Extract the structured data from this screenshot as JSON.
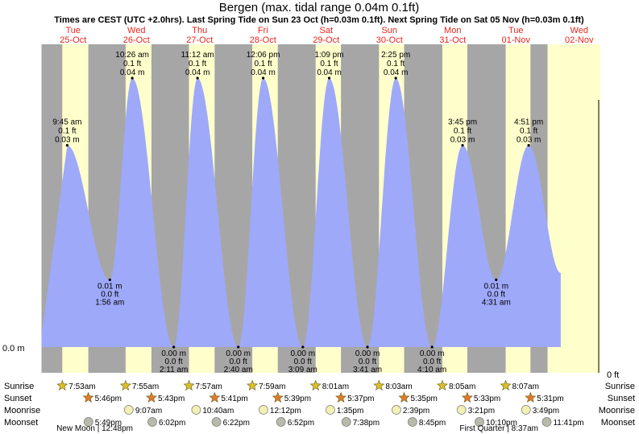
{
  "chart_data": {
    "type": "area",
    "title": "Bergen (max. tidal range 0.04m 0.1ft)",
    "subtitle": "Times are CEST (UTC +2.0hrs). Last Spring Tide on Sun 23 Oct (h=0.03m 0.1ft). Next Spring Tide on Sat 05 Nov (h=0.03m 0.1ft)",
    "x_range": [
      "2022-10-25 00:00",
      "2022-11-02 00:00"
    ],
    "ylim_m": [
      0,
      0.045
    ],
    "y_axis_labels": {
      "left": "0.0 m",
      "right": "0 ft"
    },
    "colors": {
      "water": "#9ea9fa",
      "day": "#ffffcc",
      "night": "#a6a6a6",
      "date": "#e8261c",
      "sunrise_star": "#d9c02a",
      "sunset_star": "#e07a2c",
      "moonrise": "#f2f0b2",
      "moonset": "#b9b9ac"
    },
    "days": [
      {
        "weekday": "Tue",
        "date": "25-Oct",
        "sunrise": "7:53am",
        "sunset": "5:46pm",
        "moonrise": "",
        "moonset": "5:49pm"
      },
      {
        "weekday": "Wed",
        "date": "26-Oct",
        "sunrise": "7:55am",
        "sunset": "5:43pm",
        "moonrise": "9:07am",
        "moonset": "6:02pm"
      },
      {
        "weekday": "Thu",
        "date": "27-Oct",
        "sunrise": "7:57am",
        "sunset": "5:41pm",
        "moonrise": "10:40am",
        "moonset": "6:22pm"
      },
      {
        "weekday": "Fri",
        "date": "28-Oct",
        "sunrise": "7:59am",
        "sunset": "5:39pm",
        "moonrise": "12:12pm",
        "moonset": "6:52pm"
      },
      {
        "weekday": "Sat",
        "date": "29-Oct",
        "sunrise": "8:01am",
        "sunset": "5:37pm",
        "moonrise": "1:35pm",
        "moonset": "7:38pm"
      },
      {
        "weekday": "Sun",
        "date": "30-Oct",
        "sunrise": "8:03am",
        "sunset": "5:35pm",
        "moonrise": "2:39pm",
        "moonset": "8:45pm"
      },
      {
        "weekday": "Mon",
        "date": "31-Oct",
        "sunrise": "8:05am",
        "sunset": "5:33pm",
        "moonrise": "3:21pm",
        "moonset": "10:10pm"
      },
      {
        "weekday": "Tue",
        "date": "01-Nov",
        "sunrise": "8:07am",
        "sunset": "5:31pm",
        "moonrise": "3:49pm",
        "moonset": "11:41pm"
      },
      {
        "weekday": "Wed",
        "date": "02-Nov"
      }
    ],
    "tides": [
      {
        "type": "high",
        "time": "9:45 am",
        "ft": "0.1 ft",
        "m": "0.03 m",
        "at": "2022-10-25 09:45",
        "h": 0.03
      },
      {
        "type": "low",
        "time": "1:56 am",
        "ft": "0.0 ft",
        "m": "0.01 m",
        "at": "2022-10-26 01:56",
        "h": 0.01
      },
      {
        "type": "high",
        "time": "10:26 am",
        "ft": "0.1 ft",
        "m": "0.04 m",
        "at": "2022-10-26 10:26",
        "h": 0.04
      },
      {
        "type": "low",
        "time": "2:11 am",
        "ft": "0.0 ft",
        "m": "0.00 m",
        "at": "2022-10-27 02:11",
        "h": 0.0
      },
      {
        "type": "high",
        "time": "11:12 am",
        "ft": "0.1 ft",
        "m": "0.04 m",
        "at": "2022-10-27 11:12",
        "h": 0.04
      },
      {
        "type": "low",
        "time": "2:40 am",
        "ft": "0.0 ft",
        "m": "0.00 m",
        "at": "2022-10-28 02:40",
        "h": 0.0
      },
      {
        "type": "high",
        "time": "12:06 pm",
        "ft": "0.1 ft",
        "m": "0.04 m",
        "at": "2022-10-28 12:06",
        "h": 0.04
      },
      {
        "type": "low",
        "time": "3:09 am",
        "ft": "0.0 ft",
        "m": "0.00 m",
        "at": "2022-10-29 03:09",
        "h": 0.0
      },
      {
        "type": "high",
        "time": "1:09 pm",
        "ft": "0.1 ft",
        "m": "0.04 m",
        "at": "2022-10-29 13:09",
        "h": 0.04
      },
      {
        "type": "low",
        "time": "3:41 am",
        "ft": "0.0 ft",
        "m": "0.00 m",
        "at": "2022-10-30 03:41",
        "h": 0.0
      },
      {
        "type": "high",
        "time": "2:25 pm",
        "ft": "0.1 ft",
        "m": "0.04 m",
        "at": "2022-10-30 14:25",
        "h": 0.04
      },
      {
        "type": "low",
        "time": "4:10 am",
        "ft": "0.0 ft",
        "m": "0.00 m",
        "at": "2022-10-31 04:10",
        "h": 0.0
      },
      {
        "type": "high",
        "time": "3:45 pm",
        "ft": "0.1 ft",
        "m": "0.03 m",
        "at": "2022-10-31 15:45",
        "h": 0.03
      },
      {
        "type": "low",
        "time": "4:31 am",
        "ft": "0.0 ft",
        "m": "0.01 m",
        "at": "2022-11-01 04:31",
        "h": 0.01
      },
      {
        "type": "high",
        "time": "4:51 pm",
        "ft": "0.1 ft",
        "m": "0.03 m",
        "at": "2022-11-01 16:51",
        "h": 0.03
      }
    ],
    "row_labels": [
      "Sunrise",
      "Sunset",
      "Moonrise",
      "Moonset"
    ],
    "moon_phases": [
      {
        "label": "New Moon",
        "time": "12:48pm"
      },
      {
        "label": "First Quarter",
        "time": "8:37am"
      }
    ]
  }
}
